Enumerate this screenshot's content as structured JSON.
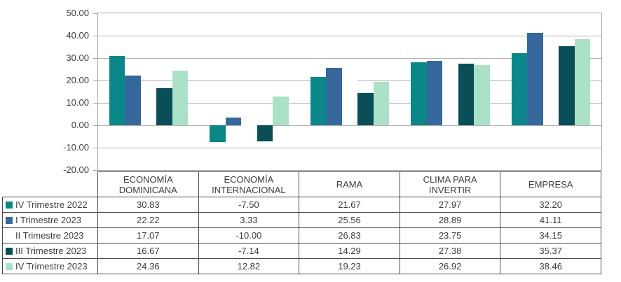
{
  "chart_data": {
    "type": "bar",
    "title": "",
    "xlabel": "",
    "ylabel": "",
    "categories": [
      "ECONOMÍA DOMINICANA",
      "ECONOMÍA INTERNACIONAL",
      "RAMA",
      "CLIMA PARA INVERTIR",
      "EMPRESA"
    ],
    "series": [
      {
        "name": "IV Trimestre 2022",
        "color": "#0b8689",
        "values": [
          30.83,
          -7.5,
          21.67,
          27.97,
          32.2
        ]
      },
      {
        "name": "I Trimestre 2023",
        "color": "#36689e",
        "values": [
          22.22,
          3.33,
          25.56,
          28.89,
          41.11
        ]
      },
      {
        "name": "II Trimestre 2023",
        "color": "#ffffff",
        "values": [
          17.07,
          -10.0,
          26.83,
          23.75,
          34.15
        ]
      },
      {
        "name": "III Trimestre 2023",
        "color": "#0a4e57",
        "values": [
          16.67,
          -7.14,
          14.29,
          27.38,
          35.37
        ]
      },
      {
        "name": "IV Trimestre 2023",
        "color": "#abe1c7",
        "values": [
          24.36,
          12.82,
          19.23,
          26.92,
          38.46
        ]
      }
    ],
    "ylim": [
      -20,
      50
    ],
    "ytick_step": 10,
    "ytick_labels": [
      "50.00",
      "40.00",
      "30.00",
      "20.00",
      "10.00",
      "0.00",
      "-10.00",
      "-20.00"
    ],
    "grid": true,
    "legend_position": "data-table-left-column",
    "value_decimals": 2
  },
  "colors": {
    "gridline": "#b3b3b3",
    "plot_border": "#a6a6a6",
    "table_border": "#4a4a4a",
    "text": "#3d3d3d",
    "background": "#ffffff"
  }
}
